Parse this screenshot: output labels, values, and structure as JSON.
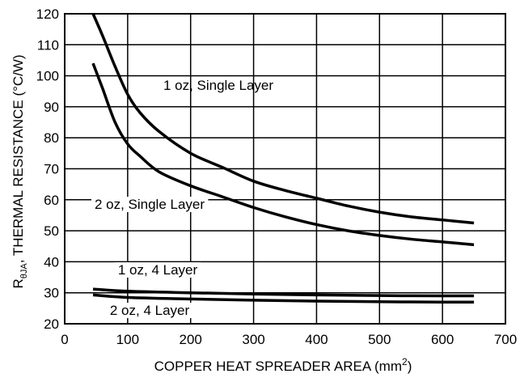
{
  "chart_data": {
    "type": "line",
    "xlabel": "COPPER HEAT SPREADER AREA (mm",
    "xlabel_sup": "2",
    "xlabel_end": ")",
    "ylabel_pre": "R",
    "ylabel_sub": "θJA",
    "ylabel_post": ", THERMAL RESISTANCE (°C/W)",
    "xlim": [
      0,
      700
    ],
    "ylim": [
      20,
      120
    ],
    "x_ticks": [
      "0",
      "100",
      "200",
      "300",
      "400",
      "500",
      "600",
      "700"
    ],
    "y_ticks": [
      "20",
      "30",
      "40",
      "50",
      "60",
      "70",
      "80",
      "90",
      "100",
      "110",
      "120"
    ],
    "grid": true,
    "series": [
      {
        "name": "1 oz, Single Layer",
        "x": [
          45,
          60,
          80,
          100,
          120,
          150,
          200,
          250,
          300,
          350,
          400,
          450,
          500,
          550,
          600,
          650
        ],
        "y": [
          120,
          113,
          103,
          94,
          88,
          82,
          75,
          70.5,
          66,
          63,
          60.5,
          58,
          56,
          54.5,
          53.5,
          52.5
        ]
      },
      {
        "name": "2 oz, Single Layer",
        "x": [
          45,
          60,
          80,
          100,
          120,
          150,
          200,
          250,
          300,
          350,
          400,
          450,
          500,
          550,
          600,
          650
        ],
        "y": [
          104,
          96,
          85,
          78,
          74,
          69,
          64.5,
          61,
          57.5,
          54.5,
          52,
          50,
          48.5,
          47.3,
          46.4,
          45.5
        ]
      },
      {
        "name": "1 oz, 4 Layer",
        "x": [
          45,
          100,
          200,
          300,
          400,
          500,
          600,
          650
        ],
        "y": [
          31.2,
          30.5,
          30,
          29.6,
          29.3,
          29.1,
          29,
          29
        ]
      },
      {
        "name": "2 oz, 4 Layer",
        "x": [
          45,
          100,
          200,
          300,
          400,
          500,
          600,
          650
        ],
        "y": [
          29.3,
          28.5,
          28,
          27.6,
          27.3,
          27.1,
          27,
          27
        ]
      }
    ]
  }
}
